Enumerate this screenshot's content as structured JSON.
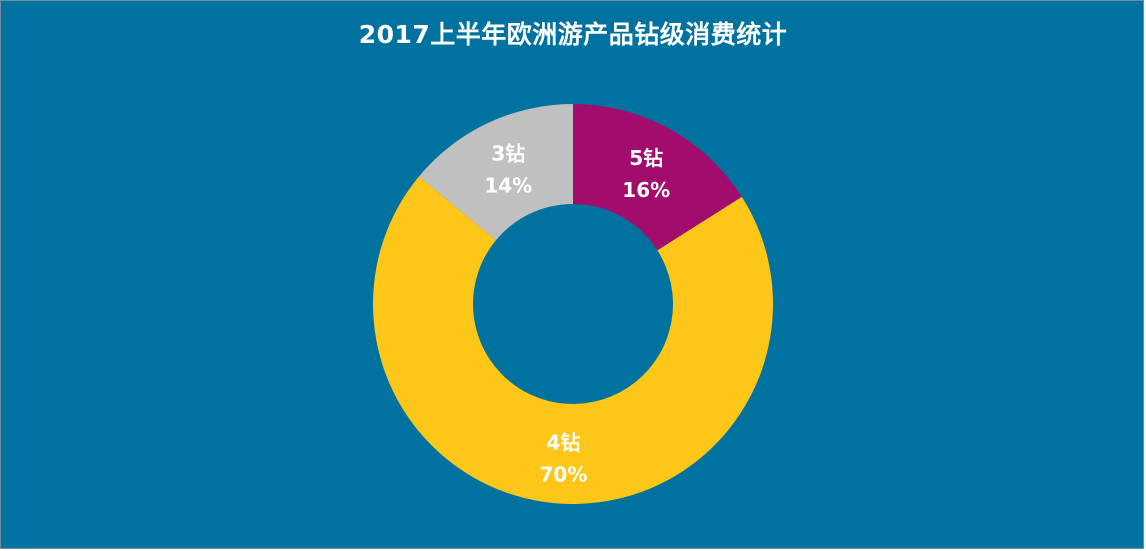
{
  "chart_data": {
    "type": "pie",
    "variant": "donut",
    "title": "2017上半年欧洲游产品钻级消费统计",
    "slices": [
      {
        "label": "5钻",
        "value": 16,
        "display": "16%",
        "color": "#a20c6d"
      },
      {
        "label": "4钻",
        "value": 70,
        "display": "70%",
        "color": "#fdc619"
      },
      {
        "label": "3钻",
        "value": 14,
        "display": "14%",
        "color": "#c0c0c0"
      }
    ],
    "legend": "none",
    "background_color": "#00729f"
  }
}
